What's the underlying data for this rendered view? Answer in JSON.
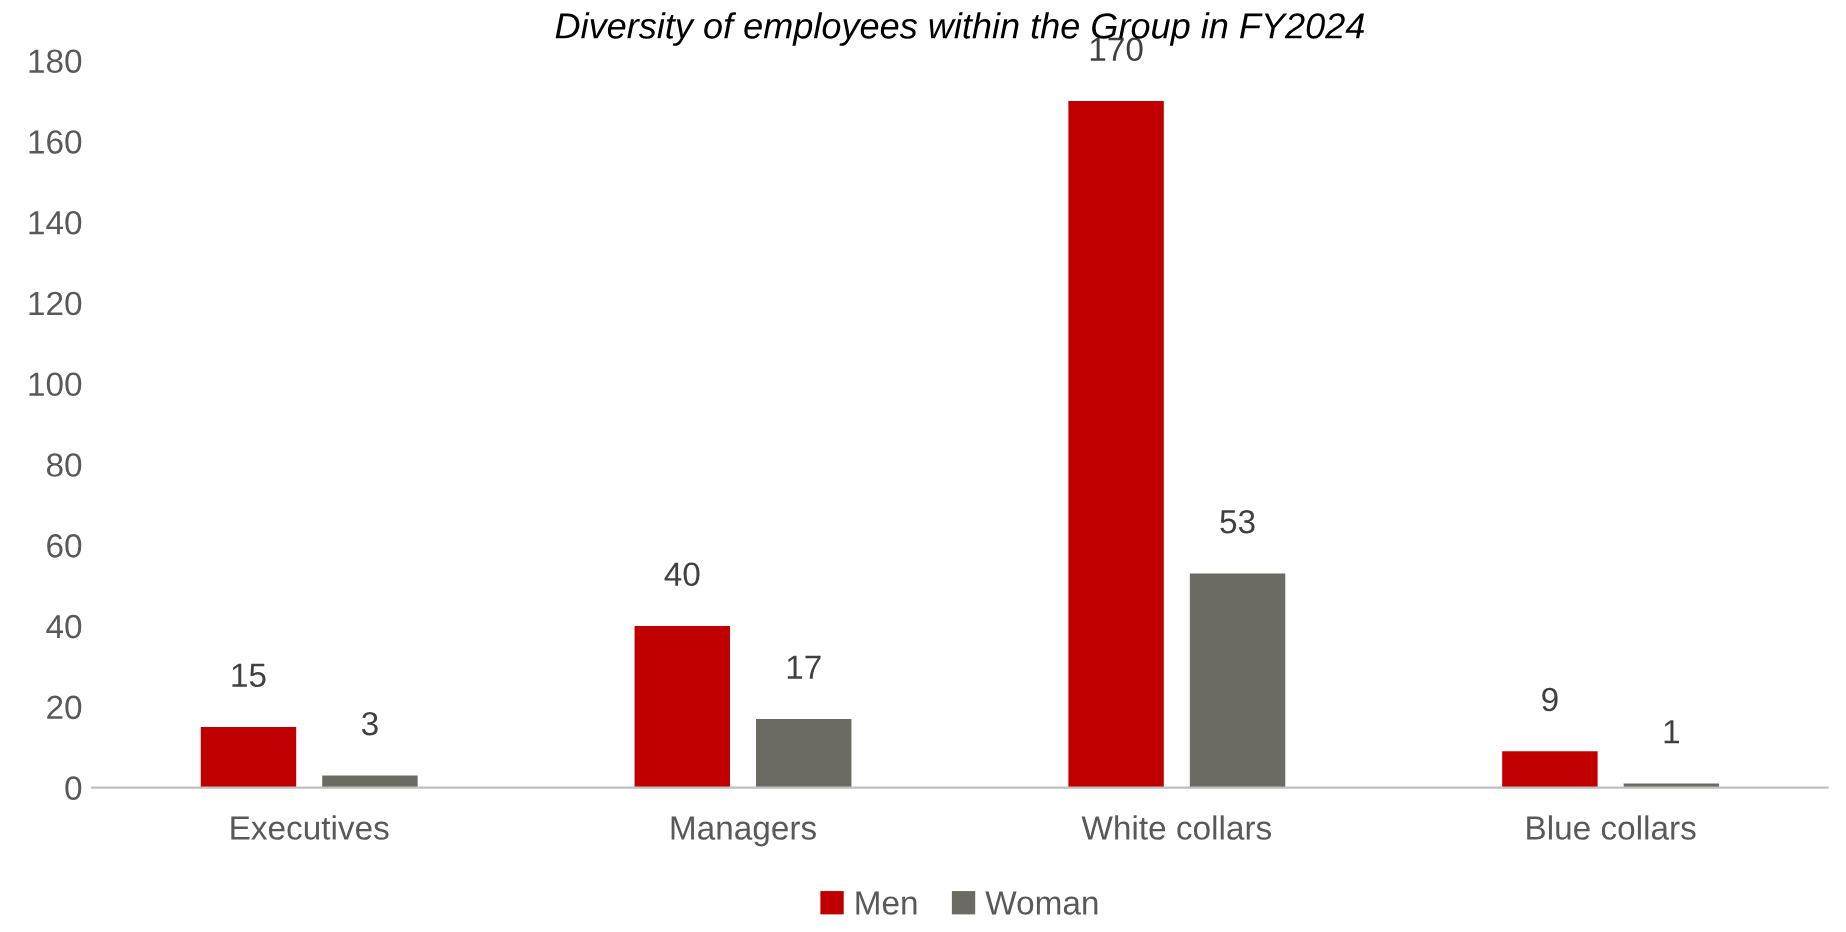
{
  "chart_data": {
    "type": "bar",
    "title": "Diversity of employees within the Group in FY2024",
    "categories": [
      "Executives",
      "Managers",
      "White collars",
      "Blue collars"
    ],
    "series": [
      {
        "name": "Men",
        "color": "#c00000",
        "values": [
          15,
          40,
          170,
          9
        ]
      },
      {
        "name": "Woman",
        "color": "#6b6b63",
        "values": [
          3,
          17,
          53,
          1
        ]
      }
    ],
    "ylim": [
      0,
      180
    ],
    "yticks": [
      0,
      20,
      40,
      60,
      80,
      100,
      120,
      140,
      160,
      180
    ],
    "grid": false,
    "legend": "bottom",
    "data_labels": true
  }
}
